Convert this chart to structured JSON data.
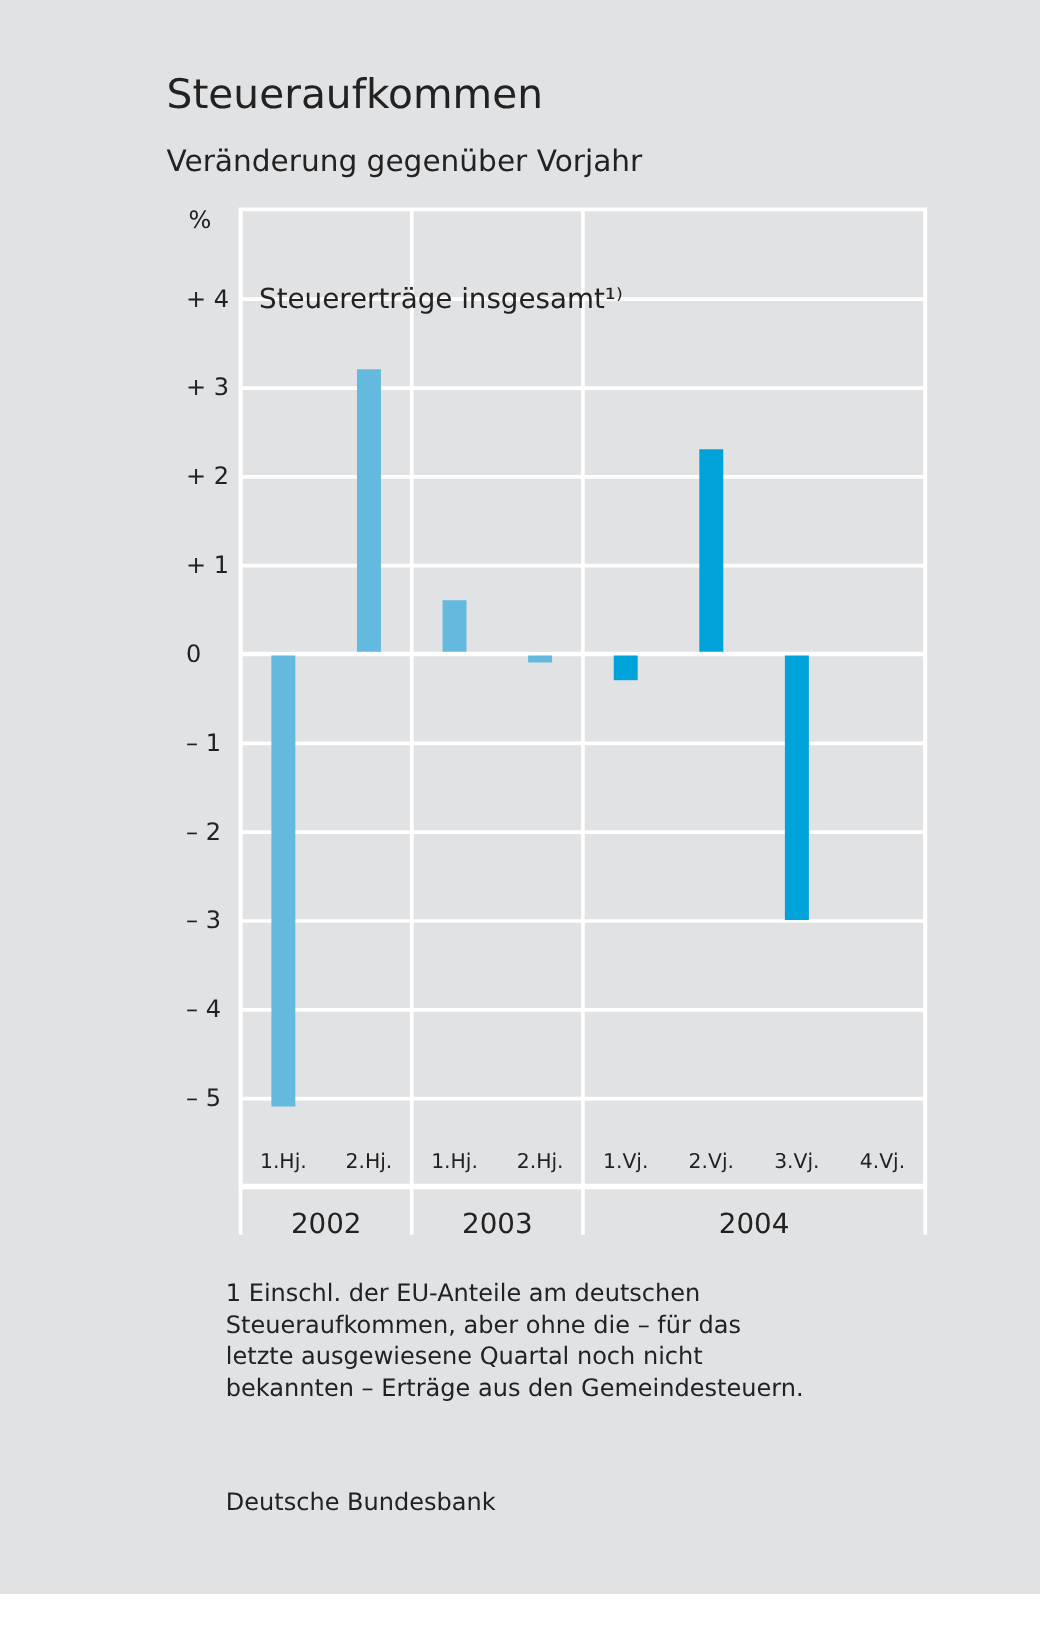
{
  "chart_data": {
    "type": "bar",
    "title": "Steueraufkommen",
    "subtitle": "Veränderung gegenüber Vorjahr",
    "ylabel": "%",
    "categories": [
      "1.Hj.",
      "2.Hj.",
      "1.Hj.",
      "2.Hj.",
      "1.Vj.",
      "2.Vj.",
      "3.Vj.",
      "4.Vj."
    ],
    "values": [
      -5.1,
      3.2,
      0.6,
      -0.1,
      -0.3,
      2.3,
      -3.0,
      null
    ],
    "colors": [
      "#63b9de",
      "#63b9de",
      "#63b9de",
      "#63b9de",
      "#00a3d9",
      "#00a3d9",
      "#00a3d9",
      "#00a3d9"
    ],
    "ylim": [
      -6,
      5
    ],
    "yticks": [
      {
        "value": 4,
        "label": "+ 4"
      },
      {
        "value": 3,
        "label": "+ 3"
      },
      {
        "value": 2,
        "label": "+ 2"
      },
      {
        "value": 1,
        "label": "+ 1"
      },
      0,
      {
        "value": -1,
        "label": "– 1"
      },
      {
        "value": -2,
        "label": "– 2"
      },
      {
        "value": -3,
        "label": "– 3"
      },
      {
        "value": -4,
        "label": "– 4"
      },
      {
        "value": -5,
        "label": "– 5"
      }
    ],
    "grid": "y",
    "annotations": [
      "Steuererträge insgesamt¹⁾",
      "2002",
      "2003",
      "2004",
      "1 Einschl. der EU-Anteile am deutschen Steueraufkommen, aber ohne die – für das letzte ausgewiesene Quartal noch nicht bekannten – Erträge aus den Gemeindesteuern.",
      "Deutsche Bundesbank"
    ]
  }
}
